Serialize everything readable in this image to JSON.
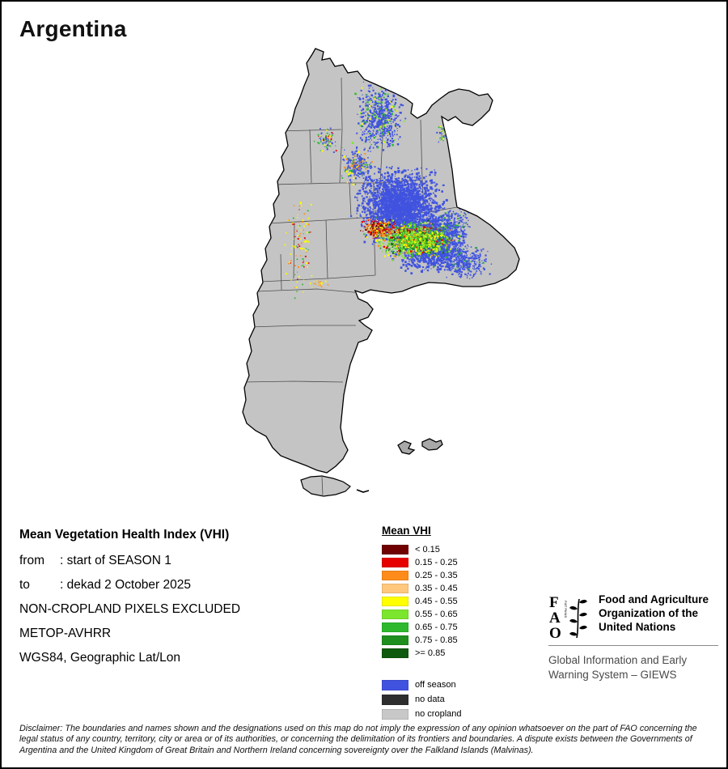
{
  "title": "Argentina",
  "info": {
    "heading": "Mean Vegetation Health Index (VHI)",
    "rows": [
      {
        "label": "from",
        "value": ": start of SEASON 1"
      },
      {
        "label": "to",
        "value": ": dekad 2 October 2025"
      }
    ],
    "plain": [
      "NON-CROPLAND PIXELS EXCLUDED",
      "METOP-AVHRR",
      "WGS84, Geographic Lat/Lon"
    ]
  },
  "legend": {
    "title": "Mean VHI",
    "items": [
      {
        "label": "< 0.15",
        "color": "#700000"
      },
      {
        "label": "0.15 - 0.25",
        "color": "#E60000"
      },
      {
        "label": "0.25 - 0.35",
        "color": "#FF8C1A"
      },
      {
        "label": "0.35 - 0.45",
        "color": "#FFC87D"
      },
      {
        "label": "0.45 - 0.55",
        "color": "#FFFF00"
      },
      {
        "label": "0.55 - 0.65",
        "color": "#7CE62E"
      },
      {
        "label": "0.65 - 0.75",
        "color": "#2EB82E"
      },
      {
        "label": "0.75 - 0.85",
        "color": "#1E8F1E"
      },
      {
        "label": ">= 0.85",
        "color": "#0E5A0E"
      }
    ],
    "special_items": [
      {
        "label": "off season",
        "color": "#4053DF"
      },
      {
        "label": "no data",
        "color": "#2E2E2E"
      },
      {
        "label": "no cropland",
        "color": "#C8C8C8"
      }
    ]
  },
  "map": {
    "country": "Argentina",
    "land_color": "#C4C4C4"
  },
  "fao": {
    "org_lines": [
      "Food and Agriculture",
      "Organization of the",
      "United Nations"
    ],
    "giews_lines": [
      "Global Information and Early",
      "Warning System – GIEWS"
    ]
  },
  "disclaimer": "Disclaimer: The boundaries and names shown and the designations used on this map do not imply the expression of any opinion whatsoever on the part of FAO concerning the legal status of any country, territory, city or area or of its authorities, or concerning the delimitation of its frontiers and boundaries. A dispute exists between the Governments of Argentina and the United Kingdom of Great Britain and Northern Ireland concerning sovereignty over the Falkland Islands (Malvinas)."
}
